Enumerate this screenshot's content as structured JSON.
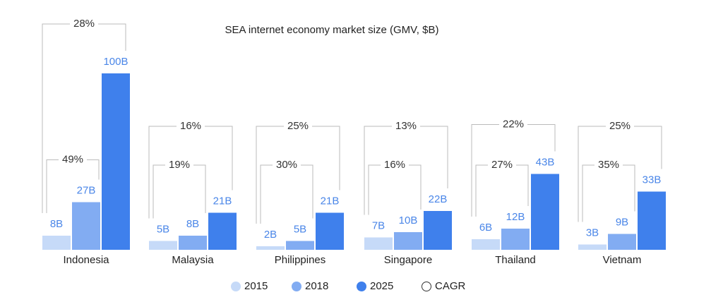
{
  "chart_data": {
    "type": "bar",
    "title": "SEA internet economy market size (GMV, $B)",
    "categories": [
      "Indonesia",
      "Malaysia",
      "Philippines",
      "Singapore",
      "Thailand",
      "Vietnam"
    ],
    "series": [
      {
        "name": "2015",
        "color": "#c6daf8",
        "values": [
          8,
          5,
          2,
          7,
          6,
          3
        ],
        "value_labels": [
          "8B",
          "5B",
          "2B",
          "7B",
          "6B",
          "3B"
        ]
      },
      {
        "name": "2018",
        "color": "#82acf2",
        "values": [
          27,
          8,
          5,
          10,
          12,
          9
        ],
        "value_labels": [
          "27B",
          "8B",
          "5B",
          "10B",
          "12B",
          "9B"
        ]
      },
      {
        "name": "2025",
        "color": "#3f80ec",
        "values": [
          100,
          21,
          21,
          22,
          43,
          33
        ],
        "value_labels": [
          "100B",
          "21B",
          "21B",
          "22B",
          "43B",
          "33B"
        ]
      }
    ],
    "cagr": {
      "name": "CAGR",
      "series": [
        {
          "values": [
            49,
            19,
            30,
            16,
            27,
            35
          ],
          "value_labels": [
            "49%",
            "19%",
            "30%",
            "16%",
            "27%",
            "35%"
          ]
        },
        {
          "values": [
            28,
            16,
            25,
            13,
            22,
            25
          ],
          "value_labels": [
            "28%",
            "16%",
            "25%",
            "13%",
            "22%",
            "25%"
          ]
        }
      ]
    }
  }
}
